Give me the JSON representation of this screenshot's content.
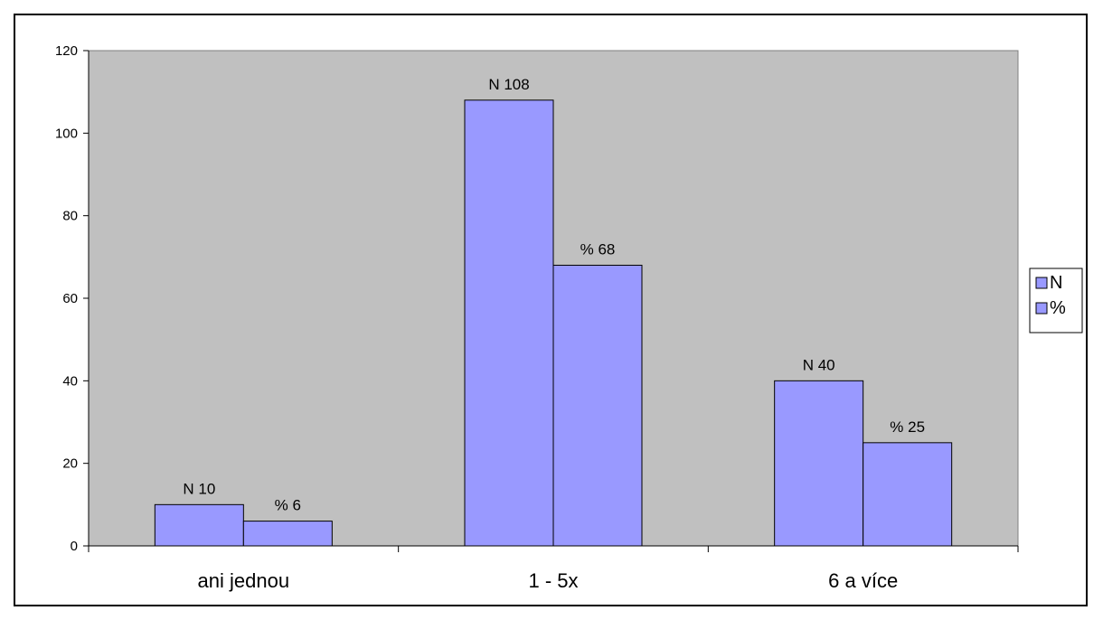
{
  "chart_data": {
    "type": "bar",
    "categories": [
      "ani jednou",
      "1 - 5x",
      "6 a více"
    ],
    "series": [
      {
        "name": "N",
        "values": [
          10,
          108,
          40
        ],
        "labels": [
          "N 10",
          "N 108",
          "N 40"
        ],
        "color": "#9999ff"
      },
      {
        "name": "%",
        "values": [
          6,
          68,
          25
        ],
        "labels": [
          "% 6",
          "% 68",
          "% 25"
        ],
        "color": "#9999ff"
      }
    ],
    "ylim": [
      0,
      120
    ],
    "yticks": [
      "0",
      "20",
      "40",
      "60",
      "80",
      "100",
      "120"
    ],
    "title": "",
    "xlabel": "",
    "ylabel": "",
    "grid": false,
    "legend_position": "right",
    "plot_background": "#c0c0c0"
  }
}
